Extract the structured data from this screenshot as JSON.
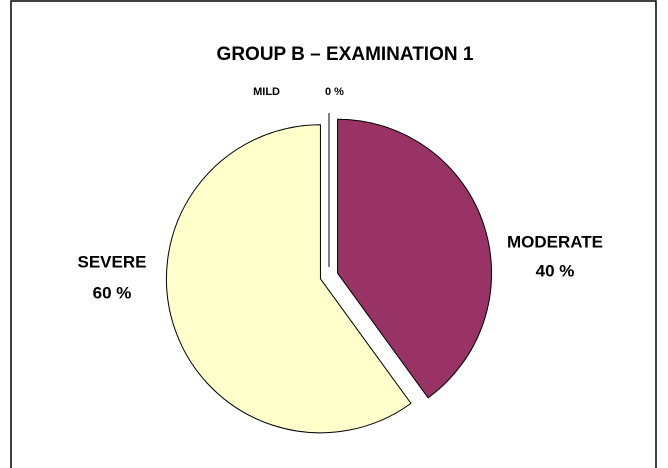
{
  "chart_data": {
    "type": "pie",
    "title": "GROUP B – EXAMINATION 1",
    "categories": [
      "MILD",
      "MODERATE",
      "SEVERE"
    ],
    "values": [
      0,
      40,
      60
    ],
    "value_labels": [
      "0 %",
      "40 %",
      "60 %"
    ],
    "colors": [
      "#9999ff",
      "#993366",
      "#ffffcc"
    ]
  }
}
